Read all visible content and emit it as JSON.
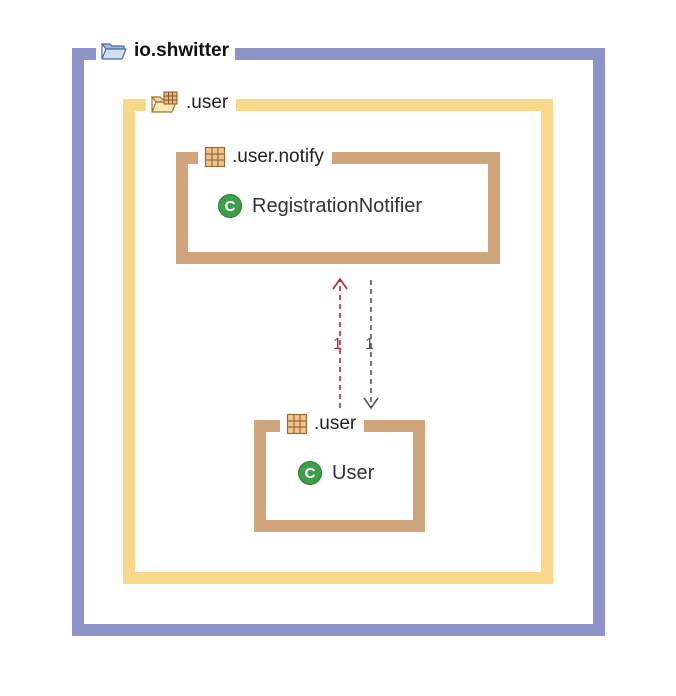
{
  "outer_package": {
    "label": "io.shwitter",
    "icon": "open-folder-icon",
    "color": "#8d93c6"
  },
  "middle_package": {
    "label": ".user",
    "icon": "open-package-folder-icon",
    "color": "#f8d98c"
  },
  "notify_package": {
    "label": ".user.notify",
    "icon": "package-icon",
    "color": "#d1a57c",
    "class": {
      "name": "RegistrationNotifier",
      "icon": "class-icon",
      "glyph": "C"
    }
  },
  "user_package": {
    "label": ".user",
    "icon": "package-icon",
    "color": "#d1a57c",
    "class": {
      "name": "User",
      "icon": "class-icon",
      "glyph": "C"
    }
  },
  "dependencies": [
    {
      "from": "User",
      "to": "RegistrationNotifier",
      "multiplicity": "1",
      "color": "#b3262e",
      "style": "dashed"
    },
    {
      "from": "RegistrationNotifier",
      "to": "User",
      "multiplicity": "1",
      "color": "#555555",
      "style": "dashed"
    }
  ]
}
